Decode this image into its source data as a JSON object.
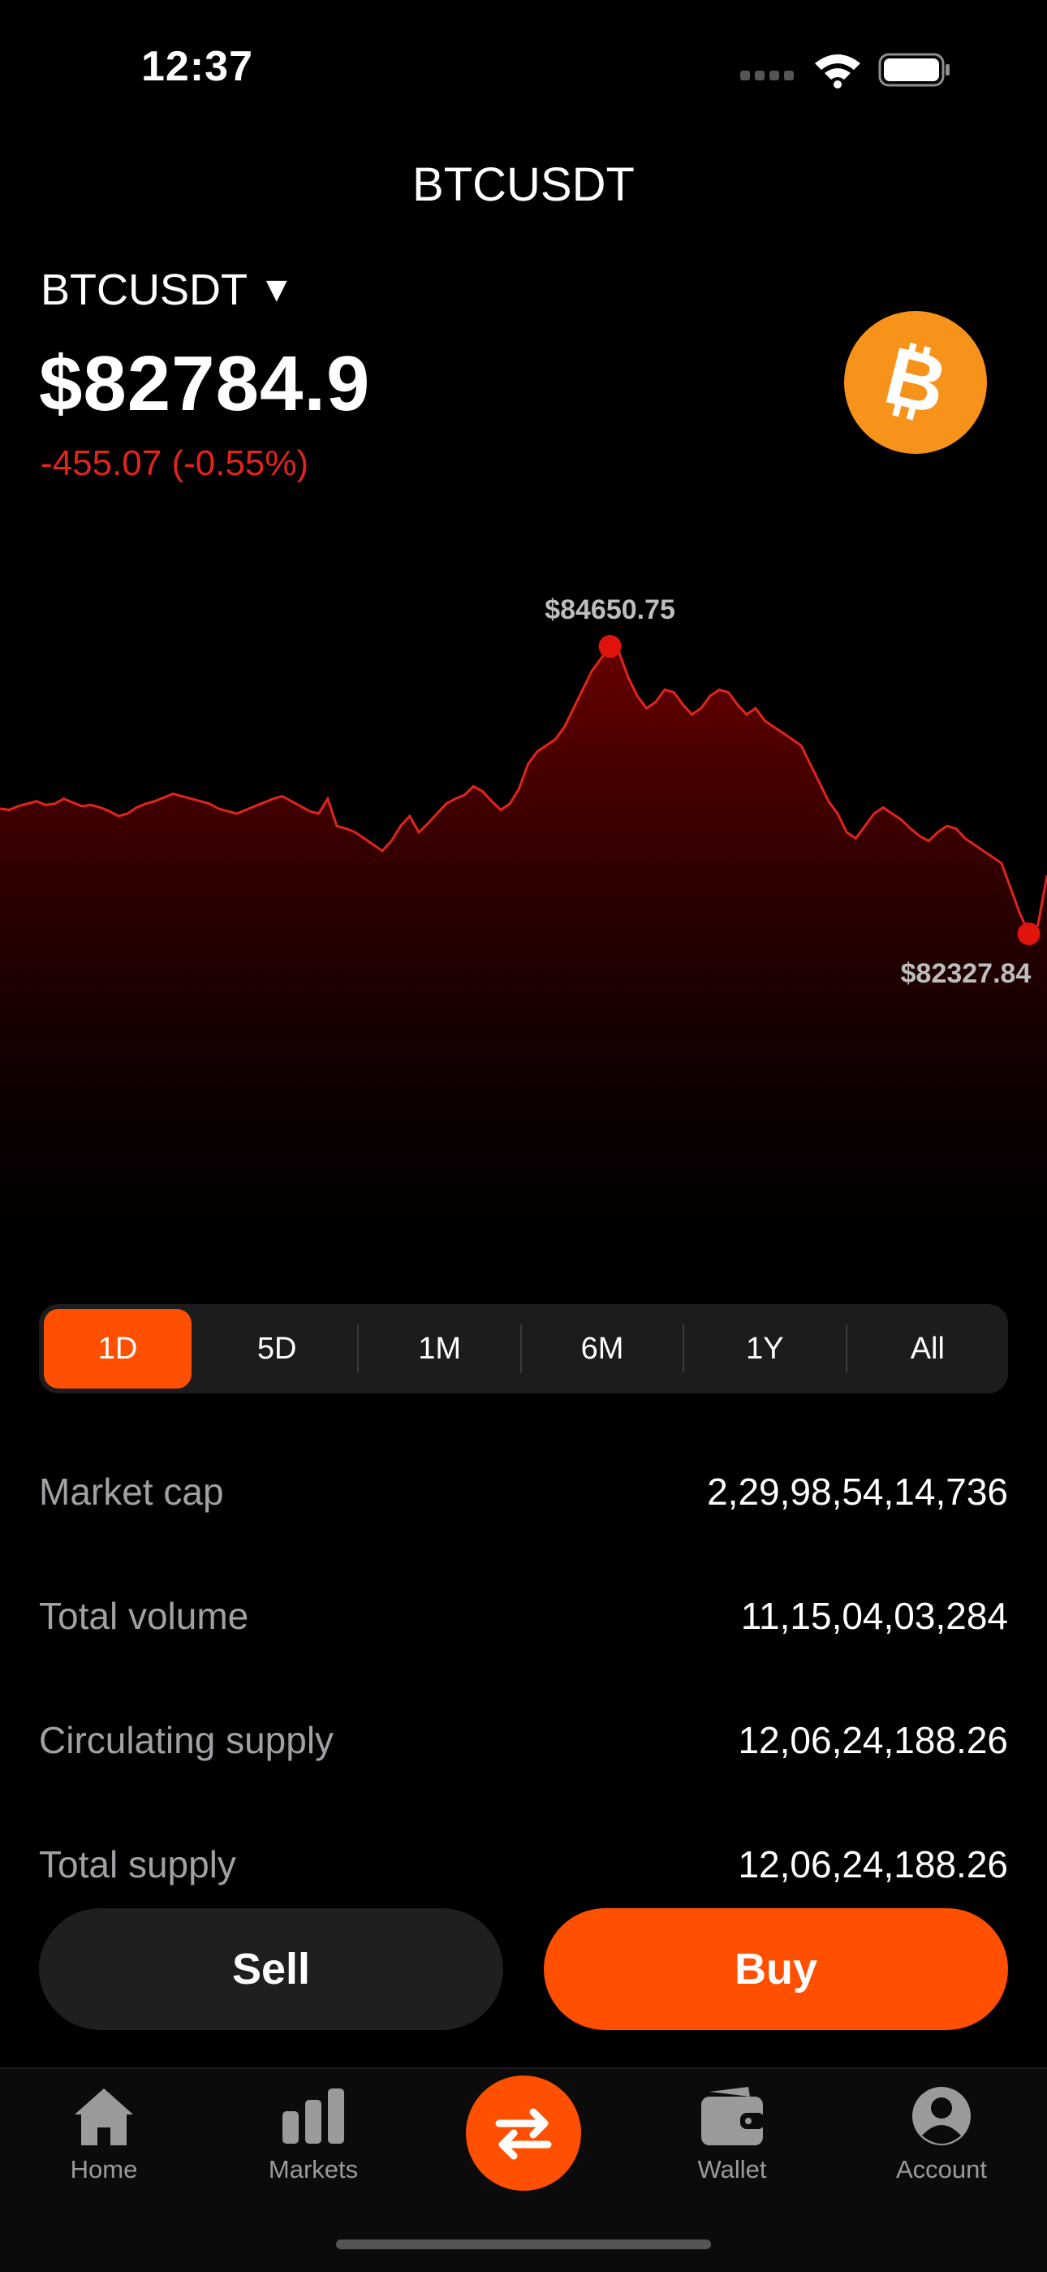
{
  "status": {
    "time": "12:37"
  },
  "nav": {
    "title": "BTCUSDT"
  },
  "asset": {
    "pair": "BTCUSDT",
    "caret": "▼",
    "price": "$82784.9",
    "change": "-455.07 (-0.55%)",
    "change_color": "#e0251b",
    "coin_color": "#f7931a",
    "coin_icon": "bitcoin-icon"
  },
  "chart_data": {
    "type": "area",
    "high_label": "$84650.75",
    "low_label": "$82327.84",
    "line_color": "#e0251b",
    "values": [
      83340,
      83330,
      83360,
      83380,
      83400,
      83370,
      83380,
      83420,
      83390,
      83360,
      83370,
      83350,
      83320,
      83280,
      83300,
      83350,
      83380,
      83400,
      83430,
      83460,
      83440,
      83420,
      83400,
      83380,
      83340,
      83320,
      83300,
      83330,
      83360,
      83390,
      83420,
      83440,
      83400,
      83360,
      83320,
      83300,
      83420,
      83200,
      83180,
      83150,
      83100,
      83050,
      83000,
      83080,
      83200,
      83280,
      83150,
      83220,
      83300,
      83380,
      83420,
      83450,
      83520,
      83480,
      83400,
      83330,
      83380,
      83500,
      83700,
      83800,
      83850,
      83900,
      84000,
      84150,
      84300,
      84450,
      84550,
      84650,
      84600,
      84400,
      84250,
      84150,
      84200,
      84300,
      84280,
      84180,
      84100,
      84150,
      84250,
      84300,
      84280,
      84180,
      84100,
      84150,
      84050,
      84000,
      83950,
      83900,
      83850,
      83700,
      83550,
      83400,
      83300,
      83150,
      83100,
      83200,
      83300,
      83350,
      83300,
      83250,
      83180,
      83120,
      83080,
      83150,
      83200,
      83180,
      83100,
      83050,
      83000,
      82950,
      82900,
      82700,
      82500,
      82330,
      82400,
      82800
    ]
  },
  "ranges": {
    "items": [
      "1D",
      "5D",
      "1M",
      "6M",
      "1Y",
      "All"
    ],
    "active": "1D",
    "active_color": "#ff4f00"
  },
  "stats": [
    {
      "label": "Market cap",
      "value": "2,29,98,54,14,736"
    },
    {
      "label": "Total volume",
      "value": "11,15,04,03,284"
    },
    {
      "label": "Circulating supply",
      "value": "12,06,24,188.26"
    },
    {
      "label": "Total supply",
      "value": "12,06,24,188.26"
    }
  ],
  "actions": {
    "sell": "Sell",
    "buy": "Buy"
  },
  "tabs": [
    {
      "label": "Home",
      "icon": "home-icon"
    },
    {
      "label": "Markets",
      "icon": "bar-chart-icon"
    },
    {
      "label": "",
      "icon": "swap-icon"
    },
    {
      "label": "Wallet",
      "icon": "wallet-icon"
    },
    {
      "label": "Account",
      "icon": "account-icon"
    }
  ]
}
